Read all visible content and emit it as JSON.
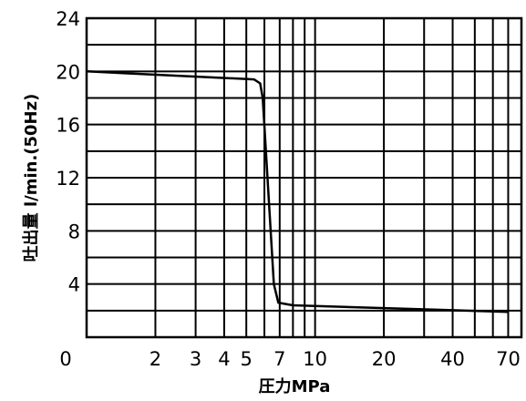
{
  "chart_data": {
    "type": "line",
    "title": "",
    "xlabel": "圧力MPa",
    "ylabel": "吐出量 l/min.(50Hz)",
    "x_scale": "log",
    "xlim": [
      1,
      80
    ],
    "ylim": [
      0,
      24
    ],
    "grid": true,
    "x_grid": [
      2,
      3,
      4,
      5,
      6,
      7,
      8,
      9,
      10,
      20,
      30,
      40,
      50,
      60,
      70
    ],
    "y_grid": [
      2,
      4,
      6,
      8,
      10,
      12,
      14,
      16,
      18,
      20,
      22
    ],
    "x_ticks": [
      {
        "value": 1,
        "label": "0"
      },
      {
        "value": 2,
        "label": "2"
      },
      {
        "value": 3,
        "label": "3"
      },
      {
        "value": 4,
        "label": "4"
      },
      {
        "value": 5,
        "label": "5"
      },
      {
        "value": 7,
        "label": "7"
      },
      {
        "value": 10,
        "label": "10"
      },
      {
        "value": 20,
        "label": "20"
      },
      {
        "value": 40,
        "label": "40"
      },
      {
        "value": 70,
        "label": "70"
      }
    ],
    "y_ticks": [
      {
        "value": 4,
        "label": "4"
      },
      {
        "value": 8,
        "label": "8"
      },
      {
        "value": 12,
        "label": "12"
      },
      {
        "value": 16,
        "label": "16"
      },
      {
        "value": 20,
        "label": "20"
      },
      {
        "value": 24,
        "label": "24"
      }
    ],
    "series": [
      {
        "x": [
          1,
          5.4,
          5.75,
          5.9,
          6.6,
          6.9,
          8,
          70
        ],
        "y": [
          20.0,
          19.4,
          19.1,
          18.0,
          4.0,
          2.6,
          2.4,
          1.9
        ]
      }
    ]
  }
}
